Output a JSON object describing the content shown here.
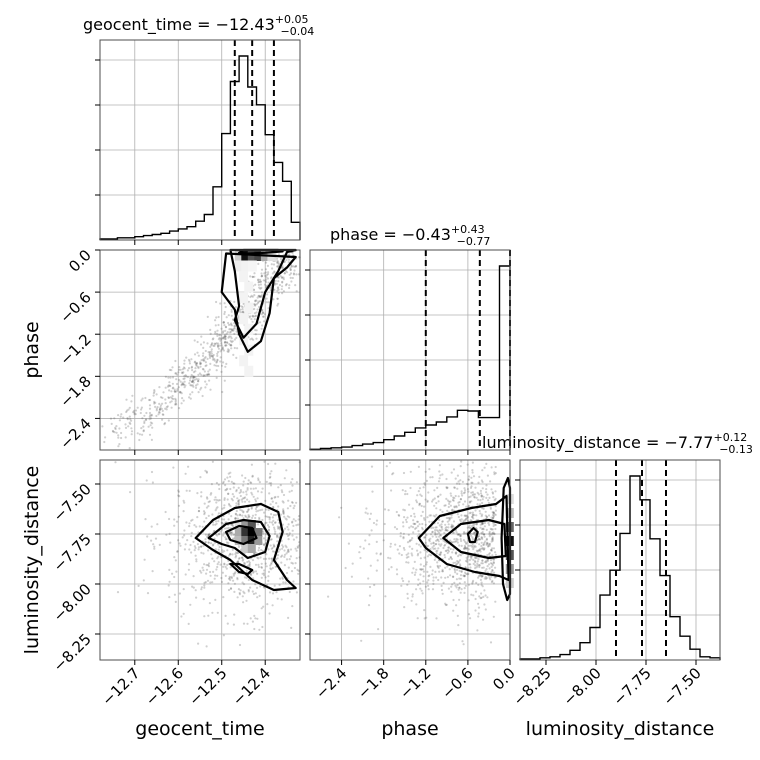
{
  "chart_data": {
    "type": "corner",
    "parameters": [
      {
        "name": "geocent_time",
        "label": "geocent_time",
        "median": "−12.43",
        "plus": "+0.05",
        "minus": "−0.04",
        "quantiles": [
          -12.47,
          -12.43,
          -12.38
        ],
        "range": [
          -12.78,
          -12.32
        ],
        "ticks": [
          -12.7,
          -12.6,
          -12.5,
          -12.4
        ],
        "tick_labels": [
          "−12.7",
          "−12.6",
          "−12.5",
          "−12.4"
        ],
        "hist_edges": [
          -12.78,
          -12.76,
          -12.74,
          -12.72,
          -12.7,
          -12.68,
          -12.66,
          -12.64,
          -12.62,
          -12.6,
          -12.58,
          -12.56,
          -12.54,
          -12.52,
          -12.5,
          -12.48,
          -12.46,
          -12.44,
          -12.42,
          -12.4,
          -12.38,
          -12.36,
          -12.34,
          -12.32
        ],
        "hist_counts": [
          1,
          1,
          2,
          2,
          3,
          4,
          5,
          6,
          8,
          10,
          12,
          17,
          23,
          48,
          96,
          143,
          166,
          138,
          122,
          95,
          70,
          53,
          16
        ]
      },
      {
        "name": "phase",
        "label": "phase",
        "median": "−0.43",
        "plus": "+0.43",
        "minus": "−0.77",
        "quantiles": [
          -1.2,
          -0.43,
          0.0
        ],
        "range": [
          -2.85,
          0.0
        ],
        "ticks": [
          -2.4,
          -1.8,
          -1.2,
          -0.6,
          0.0
        ],
        "tick_labels": [
          "−2.4",
          "−1.8",
          "−1.2",
          "−0.6",
          "0.0"
        ],
        "hist_edges": [
          -2.85,
          -2.7,
          -2.55,
          -2.4,
          -2.25,
          -2.1,
          -1.95,
          -1.8,
          -1.65,
          -1.5,
          -1.35,
          -1.2,
          -1.05,
          -0.9,
          -0.75,
          -0.6,
          -0.45,
          -0.3,
          -0.15,
          0.0
        ],
        "hist_counts": [
          1,
          2,
          3,
          4,
          6,
          8,
          10,
          14,
          19,
          24,
          30,
          34,
          38,
          45,
          54,
          53,
          44,
          44,
          250
        ]
      },
      {
        "name": "luminosity_distance",
        "label": "luminosity_distance",
        "median": "−7.77",
        "plus": "+0.12",
        "minus": "−0.13",
        "quantiles": [
          -7.9,
          -7.77,
          -7.65
        ],
        "range": [
          -8.38,
          -7.38
        ],
        "ticks": [
          -8.25,
          -8.0,
          -7.75,
          -7.5
        ],
        "tick_labels": [
          "−8.25",
          "−8.00",
          "−7.75",
          "−7.50"
        ],
        "hist_edges": [
          -8.38,
          -8.33,
          -8.28,
          -8.23,
          -8.18,
          -8.13,
          -8.08,
          -8.03,
          -7.98,
          -7.93,
          -7.88,
          -7.83,
          -7.78,
          -7.73,
          -7.68,
          -7.63,
          -7.58,
          -7.53,
          -7.48,
          -7.43,
          -7.38
        ],
        "hist_counts": [
          1,
          1,
          2,
          3,
          5,
          9,
          16,
          30,
          60,
          83,
          117,
          170,
          148,
          112,
          78,
          40,
          22,
          10,
          3,
          2
        ]
      }
    ],
    "axis_labels": {
      "x": [
        "geocent_time",
        "phase",
        "luminosity_distance"
      ],
      "y": [
        "phase",
        "luminosity_distance"
      ]
    },
    "titles": [
      "geocent_time = −12.43",
      "phase = −0.43",
      "luminosity_distance = −7.77"
    ],
    "grid": true
  }
}
